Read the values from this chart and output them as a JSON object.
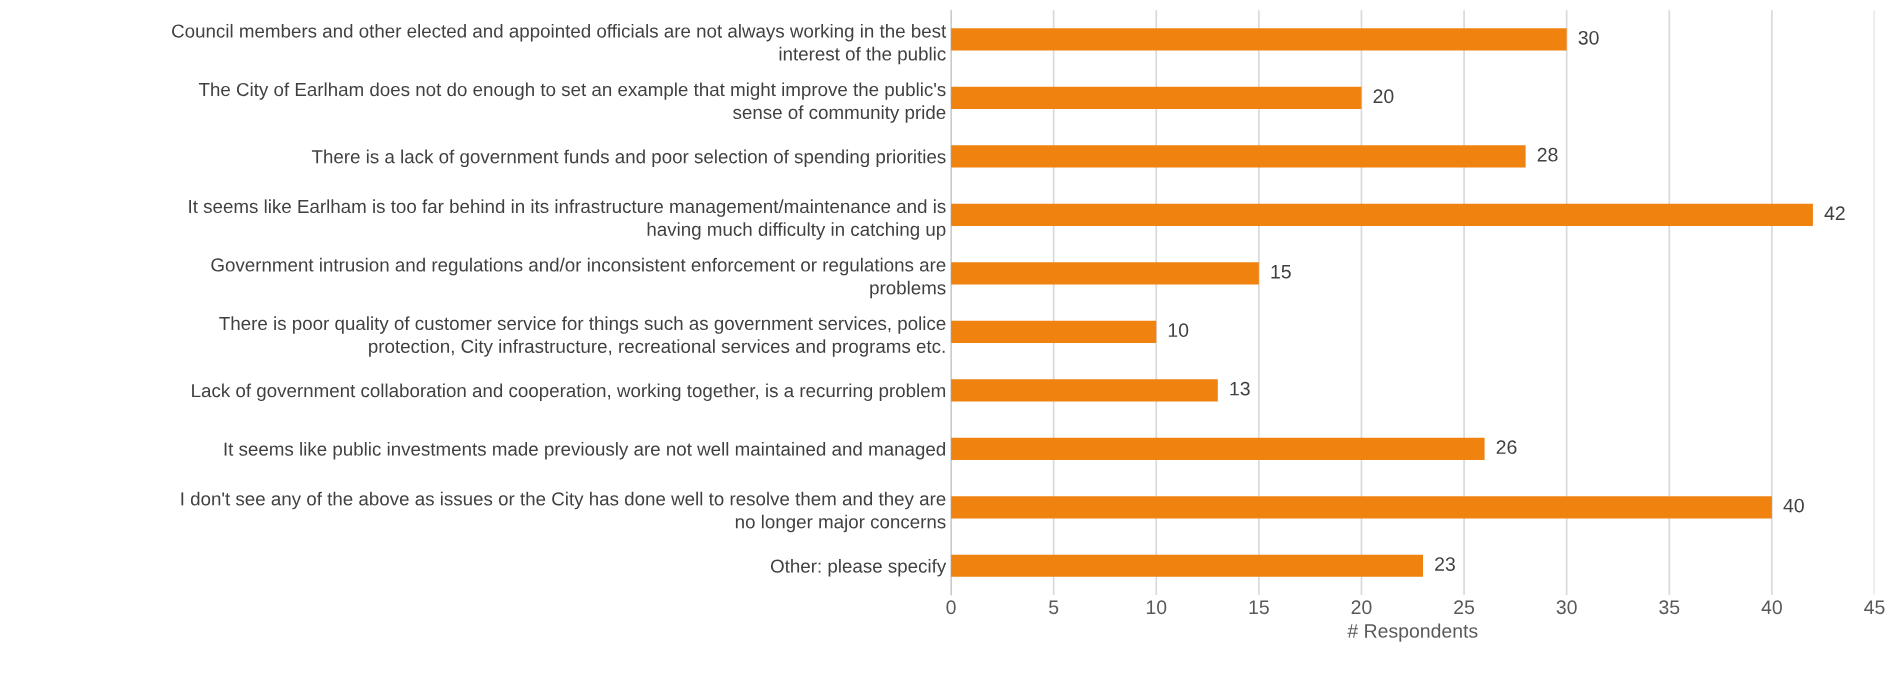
{
  "chart_data": {
    "type": "bar",
    "orientation": "horizontal",
    "xlabel": "# Respondents",
    "categories": [
      "Council members and other elected and appointed officials are not always working in the best\ninterest of the public",
      "The City of Earlham does not do enough to set an example that might improve the public's\nsense of community pride",
      "There is a lack of government funds and poor selection of spending priorities",
      "It seems like Earlham is too far behind in its infrastructure management/maintenance and is\nhaving much difficulty in catching up",
      "Government intrusion and regulations and/or inconsistent enforcement or regulations are\nproblems",
      "There is poor quality of customer service for things such as government services, police\nprotection, City infrastructure, recreational services and programs etc.",
      "Lack of government collaboration and cooperation, working together, is a recurring problem",
      "It seems like public investments made previously are not well maintained and managed",
      "I don't see any of the above as issues or the City has done well to resolve them and they are\nno longer major concerns",
      "Other: please specify"
    ],
    "values": [
      30,
      20,
      28,
      42,
      15,
      10,
      13,
      26,
      40,
      23
    ],
    "color": "#f0820f",
    "data_labels": true,
    "xlim": [
      0,
      45
    ],
    "xticks": [
      0,
      5,
      10,
      15,
      20,
      25,
      30,
      35,
      40,
      45
    ],
    "grid": "x",
    "legend": false
  }
}
